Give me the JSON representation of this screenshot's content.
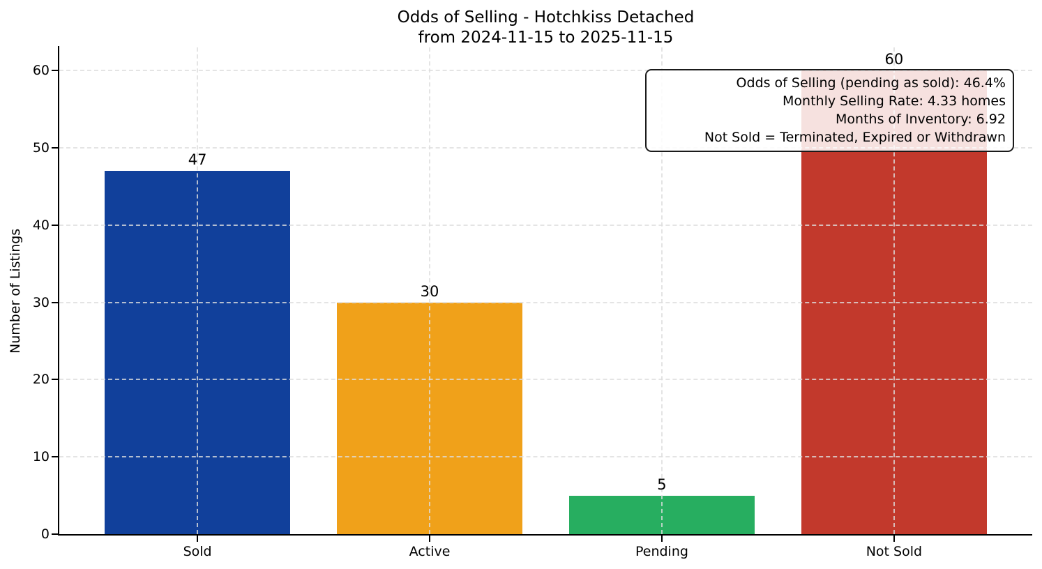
{
  "chart_data": {
    "type": "bar",
    "title": "Odds of Selling - Hotchkiss Detached",
    "subtitle": "from 2024-11-15 to 2025-11-15",
    "categories": [
      "Sold",
      "Active",
      "Pending",
      "Not Sold"
    ],
    "values": [
      47,
      30,
      5,
      60
    ],
    "bar_colors": [
      "#11409b",
      "#f0a11a",
      "#27ae60",
      "#c2392c"
    ],
    "xlabel": "",
    "ylabel": "Number of Listings",
    "ylim": [
      0,
      63
    ],
    "yticks": [
      0,
      10,
      20,
      30,
      40,
      50,
      60
    ],
    "grid": true,
    "legend": "none",
    "annotation_lines": [
      "Odds of Selling (pending as sold): 46.4%",
      "Monthly Selling Rate: 4.33 homes",
      "Months of Inventory: 6.92",
      "Not Sold = Terminated, Expired or Withdrawn"
    ]
  }
}
